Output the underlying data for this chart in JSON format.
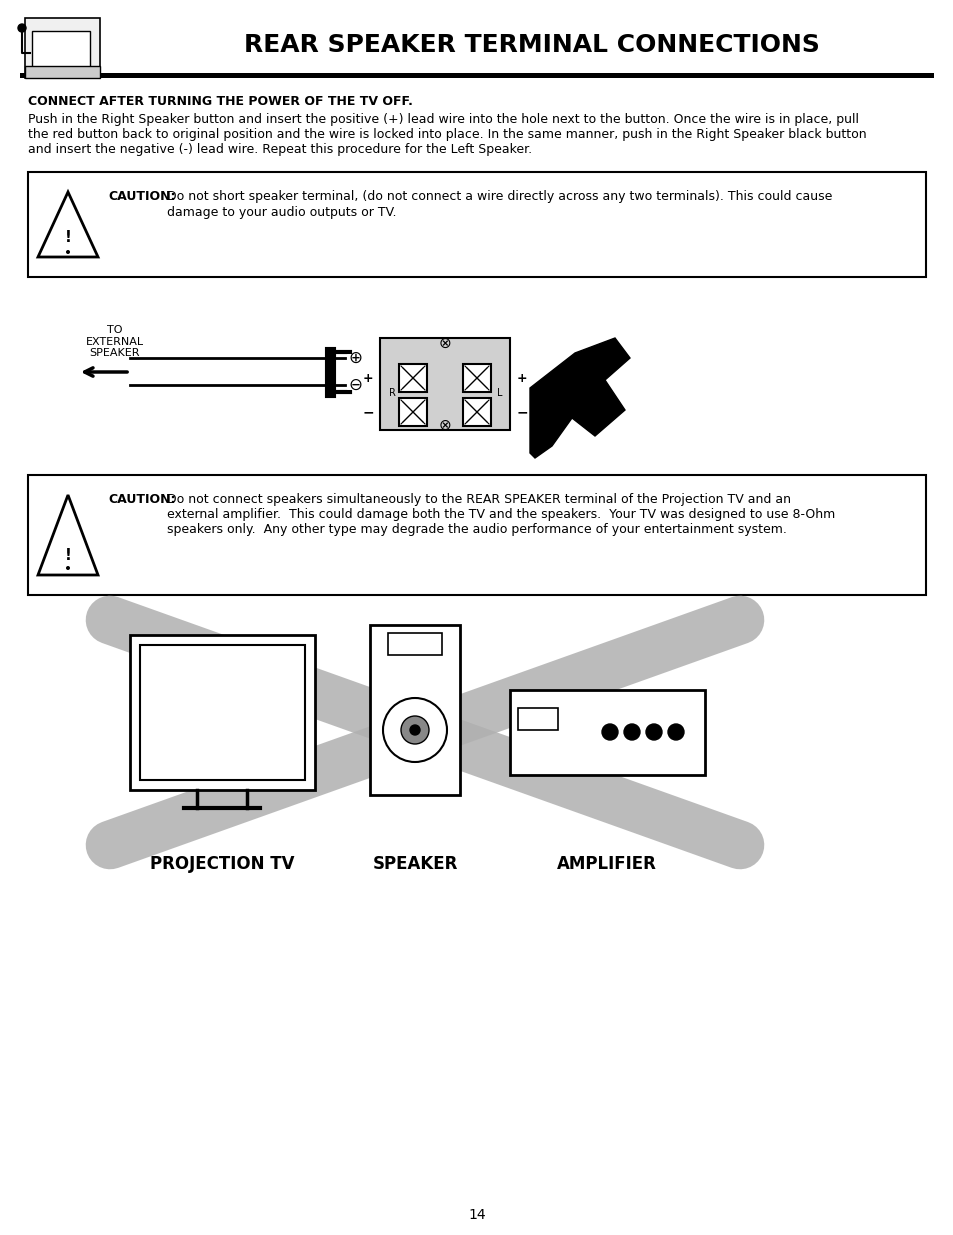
{
  "title": "REAR SPEAKER TERMINAL CONNECTIONS",
  "subtitle_bold": "CONNECT AFTER TURNING THE POWER OF THE TV OFF.",
  "body_line1": "Push in the Right Speaker button and insert the positive (+) lead wire into the hole next to the button. Once the wire is in place, pull",
  "body_line2": "the red button back to original position and the wire is locked into place. In the same manner, push in the Right Speaker black button",
  "body_line3": "and insert the negative (-) lead wire. Repeat this procedure for the Left Speaker.",
  "caution1_bold": "CAUTION:",
  "caution1_text": "  Do not short speaker terminal, (do not connect a wire directly across any two terminals). This could cause\n               damage to your audio outputs or TV.",
  "caution2_bold": "CAUTION:",
  "caution2_text": "  Do not connect speakers simultaneously to the REAR SPEAKER terminal of the Projection TV and an\n               external amplifier.  This could damage both the TV and the speakers.  Your TV was designed to use 8-Ohm\n               speakers only.  Any other type may degrade the audio performance of your entertainment system.",
  "label_proj": "PROJECTION TV",
  "label_speaker": "SPEAKER",
  "label_amplifier": "AMPLIFIER",
  "label_to_ext": "TO\nEXTERNAL\nSPEAKER",
  "page_number": "14",
  "bg_color": "#ffffff",
  "text_color": "#000000"
}
